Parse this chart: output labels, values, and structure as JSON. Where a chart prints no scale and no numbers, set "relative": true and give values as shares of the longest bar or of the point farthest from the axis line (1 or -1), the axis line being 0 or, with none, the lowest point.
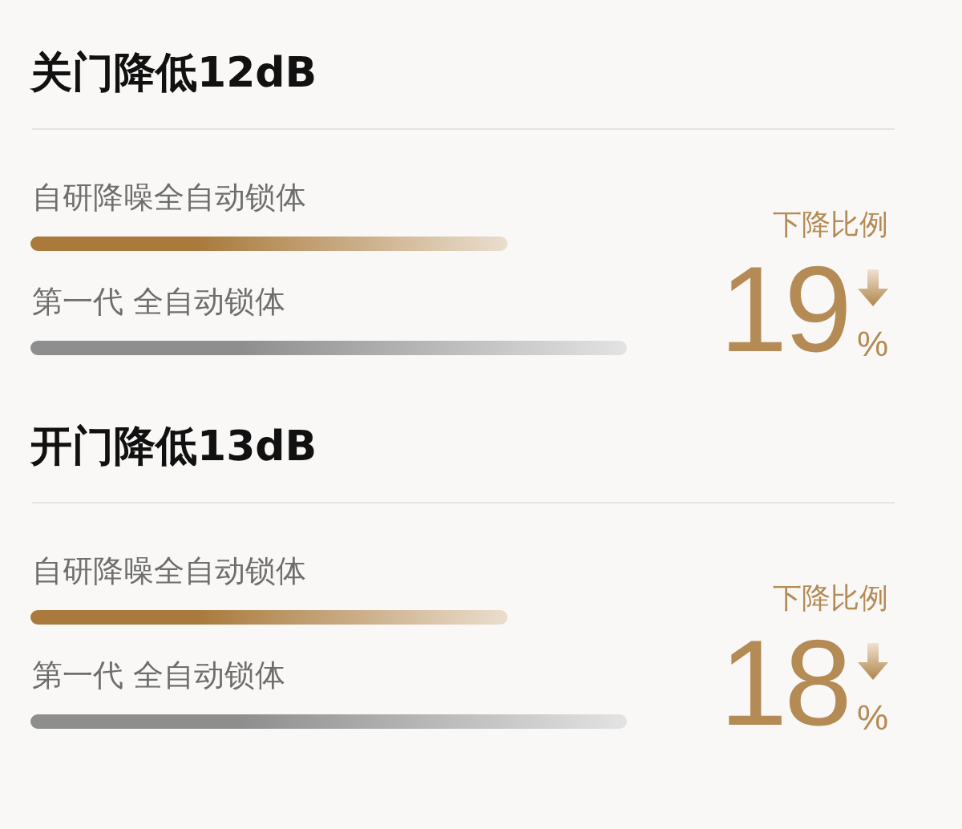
{
  "chart_data": [
    {
      "type": "bar",
      "orientation": "horizontal",
      "relative": true,
      "title": "关门降低12dB",
      "categories": [
        "自研降噪全自动锁体",
        "第一代 全自动锁体"
      ],
      "values": [
        0.8,
        1
      ],
      "colors": [
        "#a97a3c",
        "#8e8e8e"
      ],
      "annotations": [
        "下降比例",
        "19%"
      ]
    },
    {
      "type": "bar",
      "orientation": "horizontal",
      "relative": true,
      "title": "开门降低13dB",
      "categories": [
        "自研降噪全自动锁体",
        "第一代 全自动锁体"
      ],
      "values": [
        0.8,
        1
      ],
      "colors": [
        "#a97a3c",
        "#8e8e8e"
      ],
      "annotations": [
        "下降比例",
        "18%"
      ]
    }
  ]
}
